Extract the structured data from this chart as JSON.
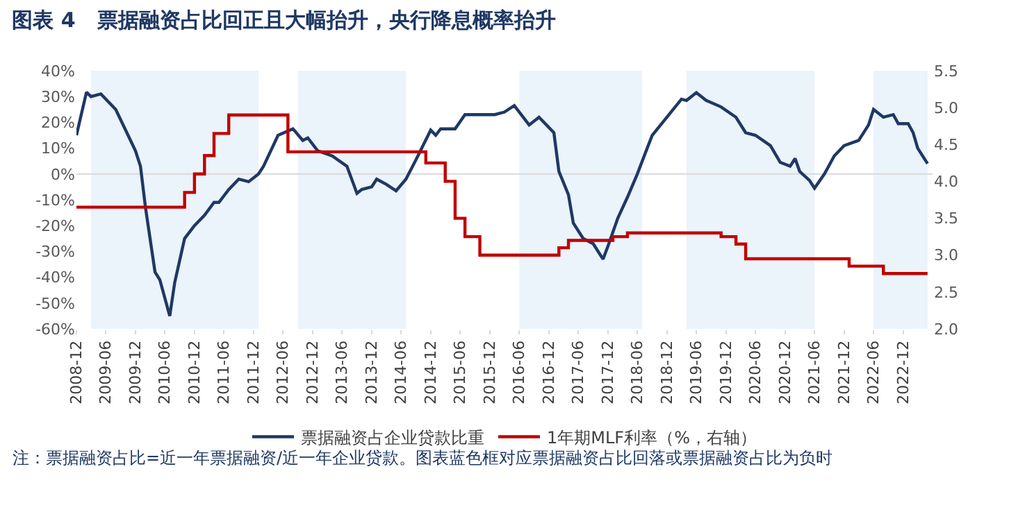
{
  "chart_data": {
    "type": "line",
    "title": "图表 4   票据融资占比回正且大幅抬升，央行降息概率抬升",
    "series": [
      {
        "name": "票据融资占企业贷款比重",
        "color": "#1f3864",
        "x": [
          "2008-12",
          "2009-02",
          "2009-03",
          "2009-05",
          "2009-08",
          "2009-10",
          "2009-12",
          "2010-01",
          "2010-02",
          "2010-04",
          "2010-05",
          "2010-07",
          "2010-08",
          "2010-10",
          "2010-12",
          "2011-02",
          "2011-04",
          "2011-05",
          "2011-07",
          "2011-09",
          "2011-11",
          "2012-01",
          "2012-02",
          "2012-05",
          "2012-08",
          "2012-10",
          "2012-11",
          "2013-01",
          "2013-04",
          "2013-07",
          "2013-09",
          "2013-10",
          "2013-12",
          "2014-01",
          "2014-03",
          "2014-05",
          "2014-07",
          "2014-09",
          "2014-12",
          "2015-01",
          "2015-02",
          "2015-05",
          "2015-07",
          "2015-09",
          "2016-01",
          "2016-03",
          "2016-05",
          "2016-08",
          "2016-10",
          "2017-01",
          "2017-02",
          "2017-04",
          "2017-05",
          "2017-07",
          "2017-09",
          "2017-11",
          "2017-12",
          "2018-02",
          "2018-04",
          "2018-06",
          "2018-08",
          "2018-09",
          "2018-12",
          "2019-03",
          "2019-04",
          "2019-06",
          "2019-08",
          "2019-11",
          "2020-02",
          "2020-04",
          "2020-06",
          "2020-09",
          "2020-11",
          "2021-01",
          "2021-02",
          "2021-03",
          "2021-05",
          "2021-06",
          "2021-08",
          "2021-10",
          "2021-12",
          "2022-03",
          "2022-05",
          "2022-06",
          "2022-08",
          "2022-10",
          "2022-11",
          "2023-01",
          "2023-02",
          "2023-03",
          "2023-05"
        ],
        "values": [
          15,
          31.7,
          30,
          31,
          25,
          17,
          9,
          3,
          -13,
          -38,
          -41,
          -55,
          -42,
          -25,
          -20,
          -16,
          -11,
          -11,
          -6,
          -2,
          -3,
          0,
          3,
          15,
          17.5,
          13,
          14,
          9,
          7,
          3,
          -7.5,
          -6,
          -5,
          -2,
          -4,
          -6.5,
          -2,
          5.5,
          17,
          15,
          17.5,
          17.5,
          23,
          23,
          23,
          24,
          26.5,
          19,
          22,
          16,
          1,
          -8,
          -19,
          -25,
          -27,
          -33,
          -28,
          -17,
          -9,
          0,
          10,
          15,
          22,
          29,
          28.5,
          31.5,
          28.5,
          26,
          22,
          16,
          15,
          11,
          4.5,
          3,
          6,
          1,
          -2.5,
          -5.5,
          0,
          7,
          11,
          13,
          19,
          25,
          22,
          23,
          19.5,
          19.5,
          16,
          10,
          4
        ]
      },
      {
        "name": "1年期MLF利率（%，右轴）",
        "color": "#c00000",
        "type": "step",
        "axis": "y2",
        "x": [
          "2008-12",
          "2010-10",
          "2010-12",
          "2011-02",
          "2011-04",
          "2011-07",
          "2012-07",
          "2014-11",
          "2015-03",
          "2015-05",
          "2015-07",
          "2015-10",
          "2017-02",
          "2017-04",
          "2018-01",
          "2018-04",
          "2019-11",
          "2020-02",
          "2020-04",
          "2022-01",
          "2022-08",
          "2023-05"
        ],
        "values": [
          3.65,
          3.85,
          4.1,
          4.35,
          4.65,
          4.9,
          4.4,
          4.25,
          4.0,
          3.5,
          3.25,
          3.0,
          3.1,
          3.2,
          3.25,
          3.3,
          3.25,
          3.15,
          2.95,
          2.85,
          2.75,
          2.75
        ]
      }
    ],
    "xlim": [
      "2008-12",
      "2023-06"
    ],
    "xticks": [
      "2008-12",
      "2009-06",
      "2009-12",
      "2010-06",
      "2010-12",
      "2011-06",
      "2011-12",
      "2012-06",
      "2012-12",
      "2013-06",
      "2013-12",
      "2014-06",
      "2014-12",
      "2015-06",
      "2015-12",
      "2016-06",
      "2016-12",
      "2017-06",
      "2017-12",
      "2018-06",
      "2018-12",
      "2019-06",
      "2019-12",
      "2020-06",
      "2020-12",
      "2021-06",
      "2021-12",
      "2022-06",
      "2022-12"
    ],
    "ylim": [
      -60,
      40
    ],
    "yticks": [
      {
        "value": -60,
        "label": "-60%"
      },
      {
        "value": -50,
        "label": "-50%"
      },
      {
        "value": -40,
        "label": "-40%"
      },
      {
        "value": -30,
        "label": "-30%"
      },
      {
        "value": -20,
        "label": "-20%"
      },
      {
        "value": -10,
        "label": "-10%"
      },
      {
        "value": 0,
        "label": "0%"
      },
      {
        "value": 10,
        "label": "10%"
      },
      {
        "value": 20,
        "label": "20%"
      },
      {
        "value": 30,
        "label": "30%"
      },
      {
        "value": 40,
        "label": "40%"
      }
    ],
    "y2lim": [
      2.0,
      5.5
    ],
    "y2ticks": [
      {
        "value": 2,
        "label": "2.0"
      },
      {
        "value": 2.5,
        "label": "2.5"
      },
      {
        "value": 3,
        "label": "3.0"
      },
      {
        "value": 3.5,
        "label": "3.5"
      },
      {
        "value": 4,
        "label": "4.0"
      },
      {
        "value": 4.5,
        "label": "4.5"
      },
      {
        "value": 5,
        "label": "5.0"
      },
      {
        "value": 5.5,
        "label": "5.5"
      }
    ],
    "bands": [
      {
        "axis": "x",
        "from": "2009-03",
        "to": "2012-01",
        "color": "#ebf3fb"
      },
      {
        "axis": "x",
        "from": "2012-09",
        "to": "2014-07",
        "color": "#ebf3fb"
      },
      {
        "axis": "x",
        "from": "2016-06",
        "to": "2018-07",
        "color": "#ebf3fb"
      },
      {
        "axis": "x",
        "from": "2019-04",
        "to": "2021-06",
        "color": "#ebf3fb"
      },
      {
        "axis": "x",
        "from": "2022-06",
        "to": "2023-05",
        "color": "#ebf3fb"
      }
    ],
    "grid": false,
    "ref_lines": [
      {
        "axis": "y",
        "value": 0,
        "color": "#d9d9d9"
      }
    ],
    "legend": "bottom",
    "annotations": [
      "注：票据融资占比=近一年票据融资/近一年企业贷款。图表蓝色框对应票据融资占比回落或票据融资占比为负时"
    ]
  }
}
